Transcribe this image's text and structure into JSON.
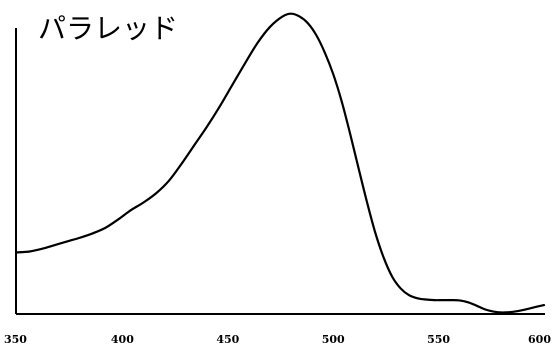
{
  "chart_data": {
    "type": "line",
    "title": "パラレッド",
    "xlabel": "",
    "ylabel": "",
    "xlim": [
      350,
      600
    ],
    "ylim": [
      0,
      1
    ],
    "xticks": [
      "350",
      "400",
      "450",
      "500",
      "550",
      "600"
    ],
    "grid": false,
    "series": [
      {
        "x": [
          350,
          356,
          362,
          368,
          374,
          380,
          386,
          392,
          398,
          404,
          410,
          416,
          422,
          428,
          434,
          440,
          446,
          452,
          458,
          464,
          470,
          476,
          480,
          484,
          488,
          492,
          496,
          500,
          504,
          508,
          512,
          516,
          520,
          524,
          528,
          532,
          536,
          540,
          544,
          548,
          552,
          556,
          560,
          564,
          568,
          572,
          576,
          580,
          584,
          588,
          592,
          596,
          600
        ],
        "y": [
          0.2,
          0.203,
          0.212,
          0.224,
          0.236,
          0.248,
          0.262,
          0.28,
          0.307,
          0.337,
          0.362,
          0.392,
          0.432,
          0.487,
          0.547,
          0.607,
          0.672,
          0.742,
          0.812,
          0.879,
          0.932,
          0.966,
          0.975,
          0.966,
          0.944,
          0.905,
          0.849,
          0.779,
          0.691,
          0.586,
          0.474,
          0.364,
          0.263,
          0.182,
          0.121,
          0.083,
          0.061,
          0.051,
          0.047,
          0.045,
          0.045,
          0.045,
          0.044,
          0.038,
          0.027,
          0.015,
          0.008,
          0.005,
          0.006,
          0.01,
          0.016,
          0.023,
          0.029
        ]
      }
    ]
  }
}
